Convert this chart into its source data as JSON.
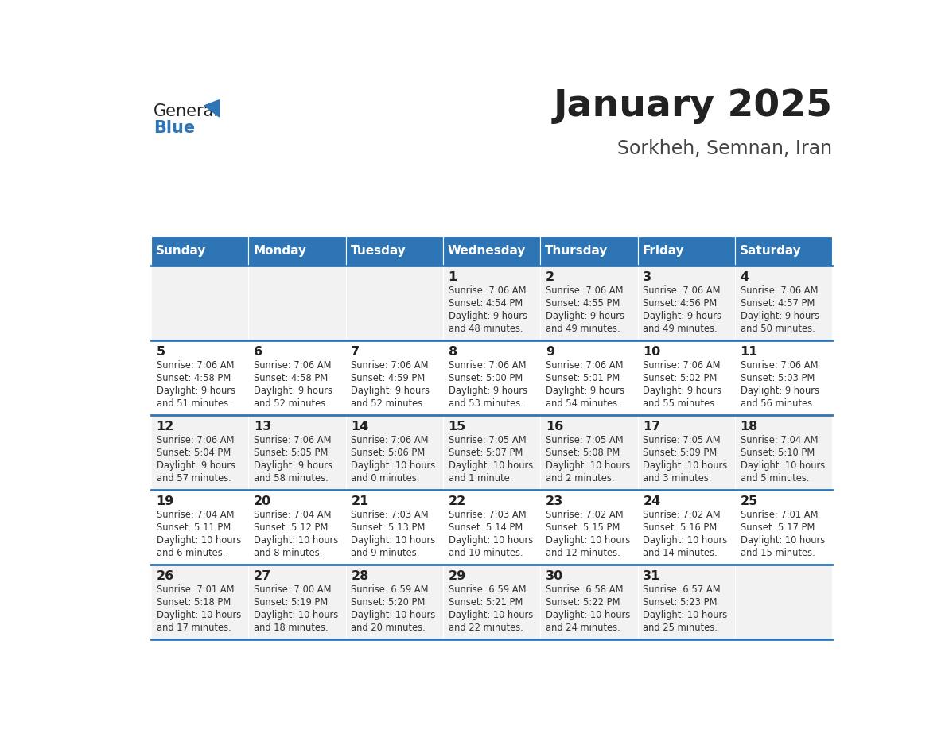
{
  "title": "January 2025",
  "subtitle": "Sorkheh, Semnan, Iran",
  "header_color": "#2E75B6",
  "header_text_color": "#FFFFFF",
  "days_of_week": [
    "Sunday",
    "Monday",
    "Tuesday",
    "Wednesday",
    "Thursday",
    "Friday",
    "Saturday"
  ],
  "row_bg_colors": [
    "#F2F2F2",
    "#FFFFFF"
  ],
  "divider_color": "#2E75B6",
  "text_color": "#333333",
  "calendar_data": [
    [
      {
        "day": null,
        "sunrise": null,
        "sunset": null,
        "daylight": null
      },
      {
        "day": null,
        "sunrise": null,
        "sunset": null,
        "daylight": null
      },
      {
        "day": null,
        "sunrise": null,
        "sunset": null,
        "daylight": null
      },
      {
        "day": 1,
        "sunrise": "7:06 AM",
        "sunset": "4:54 PM",
        "daylight": "9 hours\nand 48 minutes."
      },
      {
        "day": 2,
        "sunrise": "7:06 AM",
        "sunset": "4:55 PM",
        "daylight": "9 hours\nand 49 minutes."
      },
      {
        "day": 3,
        "sunrise": "7:06 AM",
        "sunset": "4:56 PM",
        "daylight": "9 hours\nand 49 minutes."
      },
      {
        "day": 4,
        "sunrise": "7:06 AM",
        "sunset": "4:57 PM",
        "daylight": "9 hours\nand 50 minutes."
      }
    ],
    [
      {
        "day": 5,
        "sunrise": "7:06 AM",
        "sunset": "4:58 PM",
        "daylight": "9 hours\nand 51 minutes."
      },
      {
        "day": 6,
        "sunrise": "7:06 AM",
        "sunset": "4:58 PM",
        "daylight": "9 hours\nand 52 minutes."
      },
      {
        "day": 7,
        "sunrise": "7:06 AM",
        "sunset": "4:59 PM",
        "daylight": "9 hours\nand 52 minutes."
      },
      {
        "day": 8,
        "sunrise": "7:06 AM",
        "sunset": "5:00 PM",
        "daylight": "9 hours\nand 53 minutes."
      },
      {
        "day": 9,
        "sunrise": "7:06 AM",
        "sunset": "5:01 PM",
        "daylight": "9 hours\nand 54 minutes."
      },
      {
        "day": 10,
        "sunrise": "7:06 AM",
        "sunset": "5:02 PM",
        "daylight": "9 hours\nand 55 minutes."
      },
      {
        "day": 11,
        "sunrise": "7:06 AM",
        "sunset": "5:03 PM",
        "daylight": "9 hours\nand 56 minutes."
      }
    ],
    [
      {
        "day": 12,
        "sunrise": "7:06 AM",
        "sunset": "5:04 PM",
        "daylight": "9 hours\nand 57 minutes."
      },
      {
        "day": 13,
        "sunrise": "7:06 AM",
        "sunset": "5:05 PM",
        "daylight": "9 hours\nand 58 minutes."
      },
      {
        "day": 14,
        "sunrise": "7:06 AM",
        "sunset": "5:06 PM",
        "daylight": "10 hours\nand 0 minutes."
      },
      {
        "day": 15,
        "sunrise": "7:05 AM",
        "sunset": "5:07 PM",
        "daylight": "10 hours\nand 1 minute."
      },
      {
        "day": 16,
        "sunrise": "7:05 AM",
        "sunset": "5:08 PM",
        "daylight": "10 hours\nand 2 minutes."
      },
      {
        "day": 17,
        "sunrise": "7:05 AM",
        "sunset": "5:09 PM",
        "daylight": "10 hours\nand 3 minutes."
      },
      {
        "day": 18,
        "sunrise": "7:04 AM",
        "sunset": "5:10 PM",
        "daylight": "10 hours\nand 5 minutes."
      }
    ],
    [
      {
        "day": 19,
        "sunrise": "7:04 AM",
        "sunset": "5:11 PM",
        "daylight": "10 hours\nand 6 minutes."
      },
      {
        "day": 20,
        "sunrise": "7:04 AM",
        "sunset": "5:12 PM",
        "daylight": "10 hours\nand 8 minutes."
      },
      {
        "day": 21,
        "sunrise": "7:03 AM",
        "sunset": "5:13 PM",
        "daylight": "10 hours\nand 9 minutes."
      },
      {
        "day": 22,
        "sunrise": "7:03 AM",
        "sunset": "5:14 PM",
        "daylight": "10 hours\nand 10 minutes."
      },
      {
        "day": 23,
        "sunrise": "7:02 AM",
        "sunset": "5:15 PM",
        "daylight": "10 hours\nand 12 minutes."
      },
      {
        "day": 24,
        "sunrise": "7:02 AM",
        "sunset": "5:16 PM",
        "daylight": "10 hours\nand 14 minutes."
      },
      {
        "day": 25,
        "sunrise": "7:01 AM",
        "sunset": "5:17 PM",
        "daylight": "10 hours\nand 15 minutes."
      }
    ],
    [
      {
        "day": 26,
        "sunrise": "7:01 AM",
        "sunset": "5:18 PM",
        "daylight": "10 hours\nand 17 minutes."
      },
      {
        "day": 27,
        "sunrise": "7:00 AM",
        "sunset": "5:19 PM",
        "daylight": "10 hours\nand 18 minutes."
      },
      {
        "day": 28,
        "sunrise": "6:59 AM",
        "sunset": "5:20 PM",
        "daylight": "10 hours\nand 20 minutes."
      },
      {
        "day": 29,
        "sunrise": "6:59 AM",
        "sunset": "5:21 PM",
        "daylight": "10 hours\nand 22 minutes."
      },
      {
        "day": 30,
        "sunrise": "6:58 AM",
        "sunset": "5:22 PM",
        "daylight": "10 hours\nand 24 minutes."
      },
      {
        "day": 31,
        "sunrise": "6:57 AM",
        "sunset": "5:23 PM",
        "daylight": "10 hours\nand 25 minutes."
      },
      {
        "day": null,
        "sunrise": null,
        "sunset": null,
        "daylight": null
      }
    ]
  ]
}
